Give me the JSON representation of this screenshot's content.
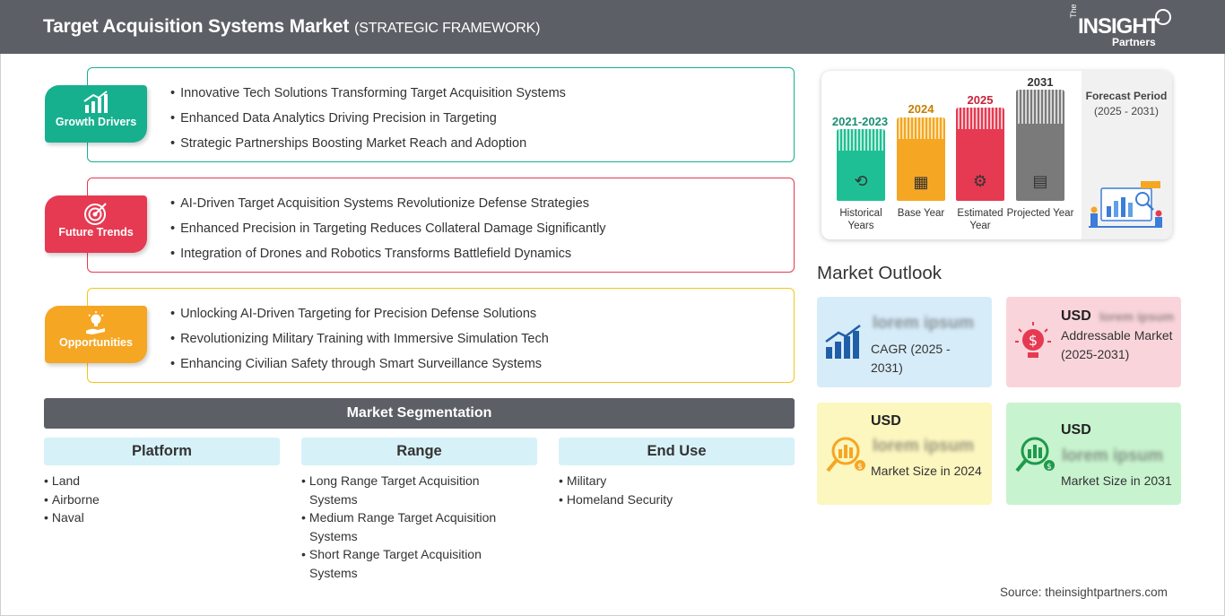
{
  "header": {
    "title": "Target Acquisition Systems Market",
    "subtitle": "(STRATEGIC FRAMEWORK)",
    "logo_the": "The",
    "logo_insight": "INSIGHT",
    "logo_partners": "Partners"
  },
  "drivers": [
    {
      "label": "Growth Drivers",
      "icon": "growth-chart-icon",
      "color": "#17b08f",
      "items": [
        "Innovative Tech Solutions Transforming Target Acquisition Systems",
        "Enhanced Data Analytics Driving Precision in Targeting",
        "Strategic Partnerships Boosting Market Reach and Adoption"
      ]
    },
    {
      "label": "Future Trends",
      "icon": "target-icon",
      "color": "#e63a52",
      "items": [
        "AI-Driven Target Acquisition Systems Revolutionize Defense Strategies",
        "Enhanced Precision in Targeting Reduces Collateral Damage Significantly",
        "Integration of Drones and Robotics Transforms Battlefield Dynamics"
      ]
    },
    {
      "label": "Opportunities",
      "icon": "lightbulb-hand-icon",
      "color": "#f5a623",
      "items": [
        "Unlocking AI-Driven Targeting for Precision Defense Solutions",
        "Revolutionizing Military Training with Immersive Simulation Tech",
        "Enhancing Civilian Safety through Smart Surveillance Systems"
      ]
    }
  ],
  "segmentation": {
    "title": "Market Segmentation",
    "columns": [
      {
        "heading": "Platform",
        "items": [
          "Land",
          "Airborne",
          "Naval"
        ]
      },
      {
        "heading": "Range",
        "items": [
          "Long Range Target Acquisition Systems",
          "Medium Range Target Acquisition Systems",
          "Short Range Target Acquisition Systems"
        ]
      },
      {
        "heading": "End Use",
        "items": [
          "Military",
          "Homeland Security"
        ]
      }
    ]
  },
  "timeline": {
    "bars": [
      {
        "year": "2021-2023",
        "label": "Historical Years",
        "color": "#1fbf95",
        "icon": "history-icon"
      },
      {
        "year": "2024",
        "label": "Base Year",
        "color": "#f5a623",
        "icon": "calendar-icon"
      },
      {
        "year": "2025",
        "label": "Estimated Year",
        "color": "#e63a52",
        "icon": "gears-icon"
      },
      {
        "year": "2031",
        "label": "Projected Year",
        "color": "#7a7a7a",
        "icon": "presentation-icon"
      }
    ],
    "forecast_label": "Forecast Period",
    "forecast_years": "(2025 - 2031)"
  },
  "outlook": {
    "title": "Market Outlook",
    "cards": [
      {
        "placeholder": "lorem ipsum",
        "usd": "",
        "text": "CAGR (2025 - 2031)",
        "color": "#d7ecf9",
        "icon": "bar-growth-icon"
      },
      {
        "placeholder": "lorem ipsum",
        "usd": "USD",
        "text": "Addressable Market (2025-2031)",
        "color": "#f9d5db",
        "icon": "dollar-bulb-icon"
      },
      {
        "placeholder": "lorem ipsum",
        "usd": "USD",
        "text": "Market Size in 2024",
        "color": "#fcf6bf",
        "icon": "coin-search-icon"
      },
      {
        "placeholder": "lorem ipsum",
        "usd": "USD",
        "text": "Market Size in 2031",
        "color": "#c8f3cf",
        "icon": "coin-search-green-icon"
      }
    ]
  },
  "source": "Source: theinsightpartners.com"
}
